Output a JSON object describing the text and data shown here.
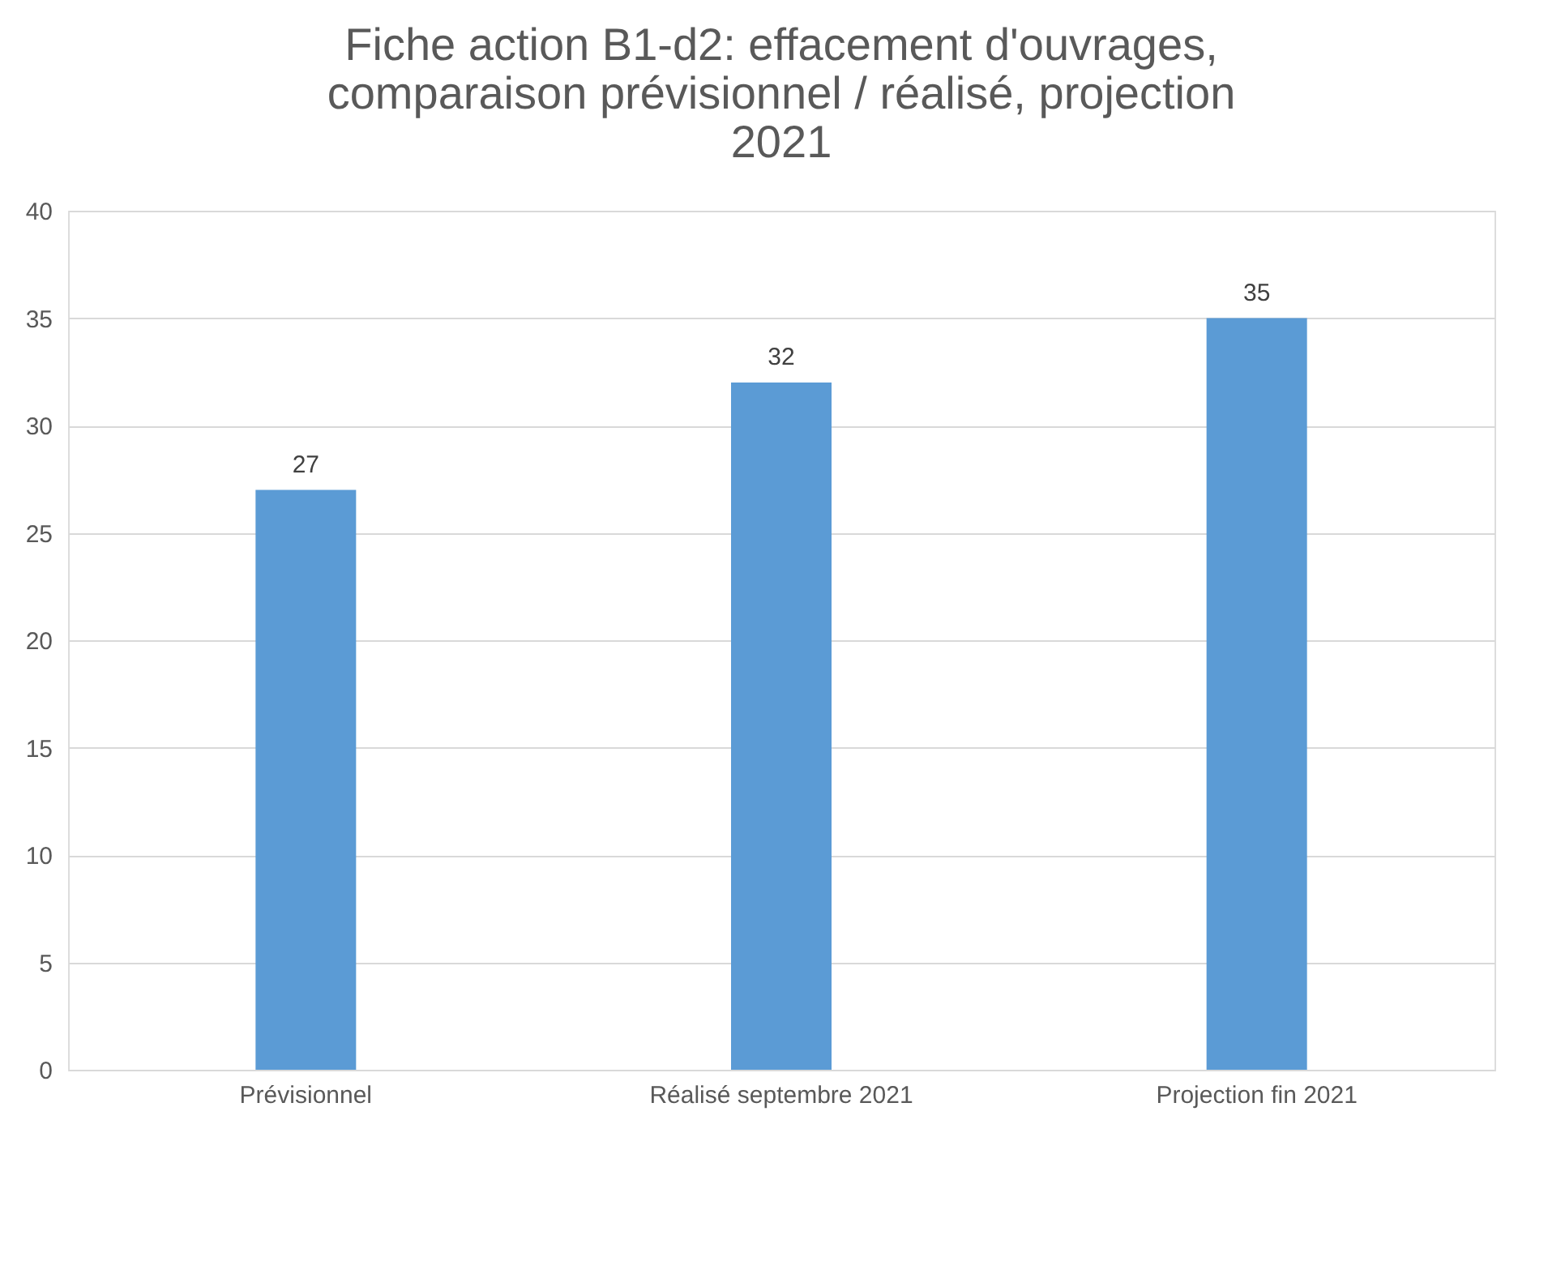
{
  "chart_data": {
    "type": "bar",
    "title": [
      "Fiche action B1-d2: effacement d'ouvrages,",
      "comparaison prévisionnel / réalisé, projection",
      "2021"
    ],
    "categories": [
      "Prévisionnel",
      "Réalisé septembre 2021",
      "Projection fin 2021"
    ],
    "series": [
      {
        "color": "#5b9bd5",
        "values": [
          27,
          32,
          35
        ]
      }
    ],
    "ylim": [
      0,
      40
    ],
    "yticks": [
      0,
      5,
      10,
      15,
      20,
      25,
      30,
      35,
      40
    ],
    "grid": "y",
    "data_labels": true
  }
}
